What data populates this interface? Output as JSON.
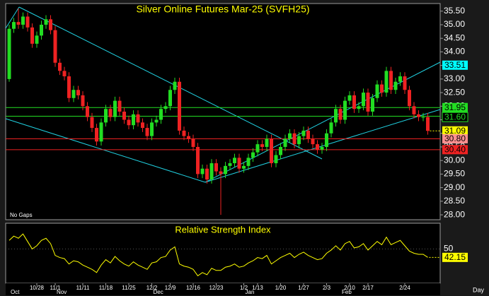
{
  "chart_data": {
    "type": "candlestick",
    "title": "Silver Online Futures Mar-25 (SVFH25)",
    "annotation": "No Gaps",
    "x_unit_label": "Day",
    "categories": [
      null,
      null,
      null,
      null,
      null,
      null,
      "10/28",
      null,
      null,
      null,
      "11/1",
      null,
      null,
      null,
      null,
      null,
      "11/11",
      null,
      null,
      null,
      null,
      "11/18",
      null,
      null,
      null,
      null,
      "11/25",
      null,
      null,
      null,
      null,
      "12/2",
      null,
      null,
      null,
      "12/9",
      null,
      null,
      null,
      null,
      "12/16",
      null,
      null,
      null,
      null,
      "12/23",
      null,
      null,
      null,
      null,
      null,
      "1/2",
      null,
      null,
      "1/13",
      null,
      null,
      null,
      null,
      "1/20",
      null,
      null,
      null,
      null,
      "1/27",
      null,
      null,
      null,
      null,
      "2/3",
      null,
      null,
      null,
      null,
      "2/10",
      null,
      null,
      null,
      "2/17",
      null,
      null,
      null,
      null,
      null,
      null,
      null,
      "2/24",
      null,
      null,
      null,
      null,
      null
    ],
    "months": [
      "Oct",
      null,
      null,
      null,
      null,
      null,
      null,
      null,
      null,
      null,
      "Nov",
      null,
      null,
      null,
      null,
      null,
      null,
      null,
      null,
      null,
      null,
      null,
      null,
      null,
      null,
      null,
      null,
      null,
      null,
      null,
      null,
      "Dec",
      null,
      null,
      null,
      null,
      null,
      null,
      null,
      null,
      null,
      null,
      null,
      null,
      null,
      null,
      null,
      null,
      null,
      null,
      null,
      "Jan",
      null,
      null,
      null,
      null,
      null,
      null,
      null,
      null,
      null,
      null,
      null,
      null,
      null,
      null,
      null,
      null,
      null,
      null,
      null,
      null,
      "Feb",
      null,
      null,
      null,
      null,
      null,
      null,
      null,
      null,
      null,
      null,
      null,
      null,
      null,
      null,
      null,
      null,
      null,
      null,
      null
    ],
    "open": [
      33.0,
      34.85,
      35.1,
      35.0,
      35.3,
      34.9,
      34.3,
      34.6,
      35.0,
      35.2,
      34.8,
      33.6,
      33.3,
      33.1,
      32.3,
      32.6,
      32.4,
      32.0,
      31.6,
      31.2,
      30.7,
      31.4,
      31.9,
      31.6,
      32.2,
      31.8,
      31.5,
      31.3,
      31.7,
      31.4,
      31.2,
      30.9,
      31.4,
      31.5,
      31.9,
      32.0,
      32.6,
      32.9,
      31.1,
      30.9,
      30.8,
      30.5,
      29.5,
      29.7,
      29.3,
      29.9,
      29.6,
      29.5,
      29.8,
      29.9,
      30.1,
      29.7,
      29.8,
      30.1,
      30.3,
      30.6,
      30.5,
      30.8,
      29.9,
      30.2,
      30.5,
      30.8,
      31.0,
      30.6,
      30.9,
      31.1,
      30.8,
      30.6,
      30.4,
      30.5,
      31.0,
      31.4,
      31.9,
      31.5,
      32.2,
      32.4,
      31.9,
      32.0,
      32.5,
      31.8,
      32.3,
      32.8,
      32.5,
      33.3,
      32.6,
      32.9,
      33.1,
      32.6,
      32.0,
      31.7,
      31.6,
      31.6
    ],
    "high": [
      35.0,
      35.25,
      35.6,
      35.45,
      35.45,
      35.05,
      34.75,
      35.15,
      35.35,
      35.35,
      34.95,
      33.75,
      33.45,
      33.25,
      32.75,
      32.75,
      32.55,
      32.15,
      31.75,
      31.35,
      31.55,
      32.05,
      32.05,
      32.35,
      32.35,
      31.95,
      31.65,
      31.85,
      31.85,
      31.55,
      31.35,
      31.55,
      31.65,
      32.05,
      32.15,
      32.75,
      33.05,
      33.05,
      31.25,
      31.05,
      30.95,
      30.65,
      29.85,
      29.85,
      30.05,
      30.05,
      29.75,
      29.95,
      30.05,
      30.25,
      30.25,
      29.95,
      30.25,
      30.45,
      30.75,
      30.75,
      30.95,
      30.95,
      30.35,
      30.65,
      30.95,
      31.15,
      31.15,
      31.05,
      31.25,
      31.25,
      30.95,
      30.75,
      30.65,
      31.15,
      31.55,
      32.05,
      32.05,
      32.35,
      32.55,
      32.55,
      32.15,
      32.65,
      32.65,
      32.45,
      32.95,
      32.95,
      33.45,
      33.45,
      33.05,
      33.25,
      33.25,
      32.75,
      32.15,
      31.85,
      31.75,
      31.75
    ],
    "low": [
      32.9,
      34.7,
      34.85,
      34.85,
      34.75,
      34.15,
      34.15,
      34.45,
      34.85,
      34.65,
      33.45,
      33.15,
      32.95,
      32.15,
      32.15,
      32.25,
      31.85,
      31.45,
      31.05,
      30.55,
      30.55,
      31.25,
      31.45,
      31.45,
      31.65,
      31.35,
      31.15,
      31.15,
      31.25,
      31.05,
      30.75,
      30.75,
      31.25,
      31.35,
      31.75,
      31.85,
      32.45,
      30.95,
      30.75,
      30.65,
      30.35,
      29.35,
      29.35,
      29.15,
      29.15,
      29.45,
      28.0,
      29.35,
      29.65,
      29.75,
      29.55,
      29.55,
      29.65,
      29.95,
      30.15,
      30.35,
      30.35,
      29.75,
      29.75,
      30.05,
      30.35,
      30.65,
      30.45,
      30.45,
      30.75,
      30.65,
      30.45,
      30.25,
      30.25,
      30.35,
      30.85,
      31.25,
      31.35,
      31.35,
      32.05,
      31.75,
      31.75,
      31.85,
      31.65,
      31.65,
      32.15,
      32.35,
      32.35,
      32.45,
      32.45,
      32.75,
      32.45,
      31.85,
      31.55,
      31.45,
      31.45,
      30.95
    ],
    "close": [
      34.85,
      35.1,
      35.0,
      35.3,
      34.9,
      34.3,
      34.6,
      35.0,
      35.2,
      34.8,
      33.6,
      33.3,
      33.1,
      32.3,
      32.6,
      32.4,
      32.0,
      31.6,
      31.2,
      30.7,
      31.4,
      31.9,
      31.6,
      32.2,
      31.8,
      31.5,
      31.3,
      31.7,
      31.4,
      31.2,
      30.9,
      31.4,
      31.5,
      31.9,
      32.0,
      32.6,
      32.9,
      31.1,
      30.9,
      30.8,
      30.5,
      29.5,
      29.7,
      29.3,
      29.9,
      29.6,
      29.5,
      29.8,
      29.9,
      30.1,
      29.7,
      29.8,
      30.1,
      30.3,
      30.6,
      30.5,
      30.8,
      29.9,
      30.2,
      30.5,
      30.8,
      31.0,
      30.6,
      30.9,
      31.1,
      30.8,
      30.6,
      30.4,
      30.5,
      31.0,
      31.4,
      31.9,
      31.5,
      32.2,
      32.4,
      31.9,
      32.0,
      32.5,
      31.8,
      32.3,
      32.8,
      32.5,
      33.3,
      32.6,
      32.9,
      33.1,
      32.6,
      32.0,
      31.7,
      31.6,
      31.6,
      31.09
    ],
    "up_color": "#22dd22",
    "down_color": "#ee2222",
    "ylim": [
      27.82,
      35.78
    ],
    "yticks": [
      {
        "value": 28,
        "label": "28.00"
      },
      {
        "value": 28.5,
        "label": "28.50"
      },
      {
        "value": 29,
        "label": "29.00"
      },
      {
        "value": 29.5,
        "label": "29.50"
      },
      {
        "value": 30,
        "label": "30.00"
      },
      {
        "value": 30.5,
        "label": "30.50"
      },
      {
        "value": 31,
        "label": "31.00"
      },
      {
        "value": 31.5,
        "label": "31.50"
      },
      {
        "value": 32,
        "label": "32.00"
      },
      {
        "value": 32.5,
        "label": "32.50"
      },
      {
        "value": 33,
        "label": "33.00"
      },
      {
        "value": 33.5,
        "label": "33.50"
      },
      {
        "value": 34,
        "label": "34.00"
      },
      {
        "value": 34.5,
        "label": "34.50"
      },
      {
        "value": 35,
        "label": "35.00"
      },
      {
        "value": 35.5,
        "label": "35.50"
      }
    ],
    "levels": [
      {
        "value": 31.95,
        "color": "#22dd22"
      },
      {
        "value": 31.63,
        "color": "#22dd22"
      },
      {
        "value": 30.8,
        "color": "#ee2222"
      },
      {
        "value": 30.4,
        "color": "#ee2222"
      }
    ],
    "price_labels": [
      {
        "value": 33.51,
        "label": "33.51",
        "color": "#00ffff",
        "text_color": "#000000"
      },
      {
        "value": 31.95,
        "label": "31.95",
        "color": "#22dd22",
        "text_color": "#000000"
      },
      {
        "value": 31.63,
        "label": "31.63",
        "color": "#22dd22",
        "text_color": "#000000"
      },
      {
        "value": 31.6,
        "label": "31.60",
        "color": "#000000",
        "text_color": "#22dd22"
      },
      {
        "value": 31.09,
        "label": "31.09",
        "color": "#ffff00",
        "text_color": "#000000"
      },
      {
        "value": 30.8,
        "label": "30.80",
        "color": "#ff9090",
        "text_color": "#000000"
      },
      {
        "value": 30.4,
        "label": "30.40",
        "color": "#ee2222",
        "text_color": "#000000"
      }
    ],
    "rsi": {
      "title": "Relative Strength Index",
      "color": "#ffff00",
      "ylim": [
        18,
        74
      ],
      "yticks": [
        50
      ],
      "values": [
        58,
        62,
        60,
        64,
        57,
        50,
        53,
        58,
        60,
        55,
        44,
        42,
        41,
        36,
        39,
        38,
        35,
        33,
        31,
        28,
        35,
        40,
        37,
        43,
        39,
        36,
        34,
        38,
        35,
        33,
        31,
        37,
        38,
        42,
        43,
        49,
        52,
        36,
        34,
        33,
        31,
        25,
        28,
        26,
        32,
        30,
        30,
        33,
        34,
        36,
        33,
        34,
        37,
        39,
        42,
        41,
        44,
        36,
        39,
        42,
        44,
        46,
        42,
        45,
        47,
        44,
        42,
        40,
        41,
        46,
        49,
        53,
        49,
        55,
        57,
        51,
        52,
        55,
        49,
        53,
        57,
        54,
        61,
        54,
        56,
        58,
        53,
        48,
        46,
        45,
        45,
        42.15
      ]
    }
  }
}
